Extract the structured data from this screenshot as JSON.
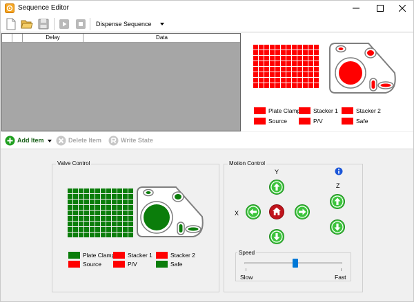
{
  "window": {
    "title": "Sequence Editor",
    "controls": [
      "minimize",
      "maximize",
      "close"
    ]
  },
  "toolbar": {
    "buttons": [
      "new-file",
      "open-folder",
      "save",
      "play",
      "stop"
    ],
    "sequence_select": {
      "value": "Dispense Sequence"
    }
  },
  "grid": {
    "columns": [
      "",
      "Delay",
      "Data"
    ],
    "rows": []
  },
  "item_bar": {
    "add_label": "Add Item",
    "delete_label": "Delete Item",
    "write_label": "Write State"
  },
  "colors": {
    "active_red": "#ff0000",
    "active_green": "#0b7d0b",
    "thumb_blue": "#0078d7",
    "arrow_green": "#3cc43c",
    "home_red": "#c0141c",
    "info_blue": "#1b56d8"
  },
  "state_legend": {
    "items": [
      {
        "label": "Plate Clamp",
        "color": "#ff0000"
      },
      {
        "label": "Stacker 1",
        "color": "#ff0000"
      },
      {
        "label": "Stacker 2",
        "color": "#ff0000"
      },
      {
        "label": "Source",
        "color": "#ff0000"
      },
      {
        "label": "P/V",
        "color": "#ff0000"
      },
      {
        "label": "Safe",
        "color": "#ff0000"
      }
    ]
  },
  "valve_control": {
    "title": "Valve Control",
    "items": [
      {
        "label": "Plate Clamp",
        "color": "#0b7d0b"
      },
      {
        "label": "Stacker 1",
        "color": "#ff0000"
      },
      {
        "label": "Stacker 2",
        "color": "#ff0000"
      },
      {
        "label": "Source",
        "color": "#ff0000"
      },
      {
        "label": "P/V",
        "color": "#ff0000"
      },
      {
        "label": "Safe",
        "color": "#0b7d0b"
      }
    ]
  },
  "motion_control": {
    "title": "Motion Control",
    "y_label": "Y",
    "x_label": "X",
    "z_label": "Z",
    "buttons": [
      "y-up",
      "x-left",
      "home",
      "x-right",
      "y-down",
      "z-up",
      "z-down",
      "info"
    ],
    "speed": {
      "title": "Speed",
      "min_label": "Slow",
      "max_label": "Fast",
      "value_fraction": 0.52
    }
  }
}
